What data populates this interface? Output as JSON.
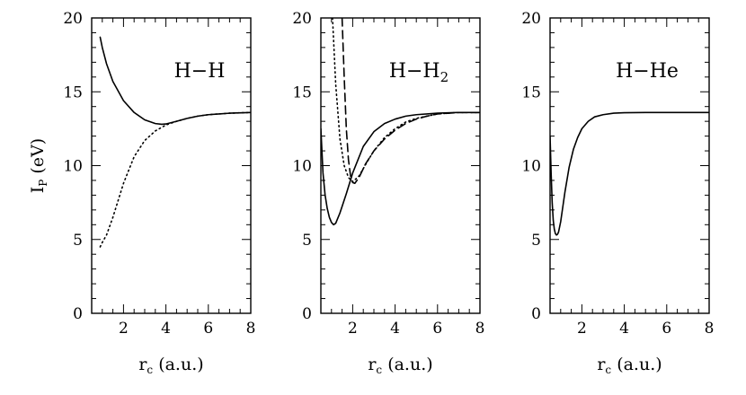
{
  "chart_data": [
    {
      "type": "line",
      "title": "H−H",
      "title_sub": "",
      "xlabel": "r",
      "xlabel_sub": "c",
      "xlabel_suffix": " (a.u.)",
      "ylabel": "I",
      "ylabel_sub": "P",
      "ylabel_suffix": " (eV)",
      "xlim": [
        0.5,
        8
      ],
      "ylim": [
        0,
        20
      ],
      "xticks": [
        2,
        4,
        6,
        8
      ],
      "yticks": [
        0,
        5,
        10,
        15,
        20
      ],
      "grid": false,
      "series": [
        {
          "style": "solid",
          "x": [
            0.9,
            1.0,
            1.2,
            1.5,
            2.0,
            2.5,
            3.0,
            3.5,
            3.8,
            4.0,
            4.5,
            5.0,
            5.5,
            6.0,
            6.5,
            7.0,
            8.0
          ],
          "y": [
            18.7,
            18.0,
            16.9,
            15.7,
            14.4,
            13.6,
            13.1,
            12.85,
            12.8,
            12.82,
            13.0,
            13.2,
            13.35,
            13.45,
            13.5,
            13.55,
            13.6
          ]
        },
        {
          "style": "dotted",
          "x": [
            0.9,
            1.0,
            1.2,
            1.5,
            2.0,
            2.5,
            3.0,
            3.5,
            4.0,
            4.5,
            5.0,
            5.5,
            6.0,
            7.0,
            8.0
          ],
          "y": [
            4.5,
            4.8,
            5.3,
            6.5,
            8.8,
            10.6,
            11.7,
            12.35,
            12.75,
            13.0,
            13.2,
            13.35,
            13.45,
            13.55,
            13.6
          ]
        }
      ]
    },
    {
      "type": "line",
      "title": "H−H",
      "title_sub": "2",
      "xlabel": "r",
      "xlabel_sub": "c",
      "xlabel_suffix": " (a.u.)",
      "ylabel": "",
      "ylabel_sub": "",
      "ylabel_suffix": "",
      "xlim": [
        0.5,
        8
      ],
      "ylim": [
        0,
        20
      ],
      "xticks": [
        2,
        4,
        6,
        8
      ],
      "yticks": [
        0,
        5,
        10,
        15,
        20
      ],
      "grid": false,
      "series": [
        {
          "style": "solid",
          "x": [
            0.5,
            0.6,
            0.7,
            0.8,
            0.9,
            1.0,
            1.1,
            1.2,
            1.4,
            1.7,
            2.0,
            2.5,
            3.0,
            3.5,
            4.0,
            4.5,
            5.0,
            6.0,
            7.0,
            8.0
          ],
          "y": [
            12.5,
            9.5,
            8.0,
            7.1,
            6.5,
            6.15,
            6.0,
            6.1,
            6.8,
            8.1,
            9.5,
            11.3,
            12.3,
            12.85,
            13.15,
            13.35,
            13.45,
            13.55,
            13.6,
            13.6
          ]
        },
        {
          "style": "dotted",
          "x": [
            1.05,
            1.2,
            1.4,
            1.6,
            1.8,
            2.0,
            2.3,
            2.7,
            3.0,
            3.5,
            4.0,
            4.5,
            5.0,
            6.0,
            7.0,
            8.0
          ],
          "y": [
            20.0,
            15.5,
            11.8,
            10.0,
            9.2,
            8.9,
            9.3,
            10.3,
            11.0,
            11.9,
            12.5,
            12.95,
            13.2,
            13.5,
            13.6,
            13.6
          ]
        },
        {
          "style": "dashed",
          "x": [
            1.5,
            1.6,
            1.7,
            1.8,
            1.9,
            2.0,
            2.1,
            2.3,
            2.6,
            3.0,
            3.5,
            4.0,
            4.5,
            5.0,
            5.5,
            6.0,
            7.0,
            8.0
          ],
          "y": [
            20.0,
            16.0,
            12.5,
            10.4,
            9.3,
            8.85,
            8.8,
            9.2,
            10.1,
            11.0,
            11.8,
            12.4,
            12.85,
            13.15,
            13.35,
            13.5,
            13.6,
            13.6
          ]
        }
      ]
    },
    {
      "type": "line",
      "title": "H−He",
      "title_sub": "",
      "xlabel": "r",
      "xlabel_sub": "c",
      "xlabel_suffix": " (a.u.)",
      "ylabel": "",
      "ylabel_sub": "",
      "ylabel_suffix": "",
      "xlim": [
        0.5,
        8
      ],
      "ylim": [
        0,
        20
      ],
      "xticks": [
        2,
        4,
        6,
        8
      ],
      "yticks": [
        0,
        5,
        10,
        15,
        20
      ],
      "grid": false,
      "series": [
        {
          "style": "solid",
          "x": [
            0.5,
            0.55,
            0.6,
            0.65,
            0.7,
            0.75,
            0.8,
            0.85,
            0.9,
            1.0,
            1.1,
            1.2,
            1.4,
            1.6,
            1.8,
            2.0,
            2.3,
            2.6,
            3.0,
            3.5,
            4.0,
            5.0,
            6.0,
            7.0,
            8.0
          ],
          "y": [
            12.0,
            9.5,
            7.5,
            6.3,
            5.7,
            5.4,
            5.3,
            5.35,
            5.5,
            6.2,
            7.2,
            8.2,
            9.9,
            11.1,
            11.9,
            12.5,
            13.0,
            13.3,
            13.45,
            13.55,
            13.58,
            13.6,
            13.6,
            13.6,
            13.6
          ]
        }
      ]
    }
  ]
}
